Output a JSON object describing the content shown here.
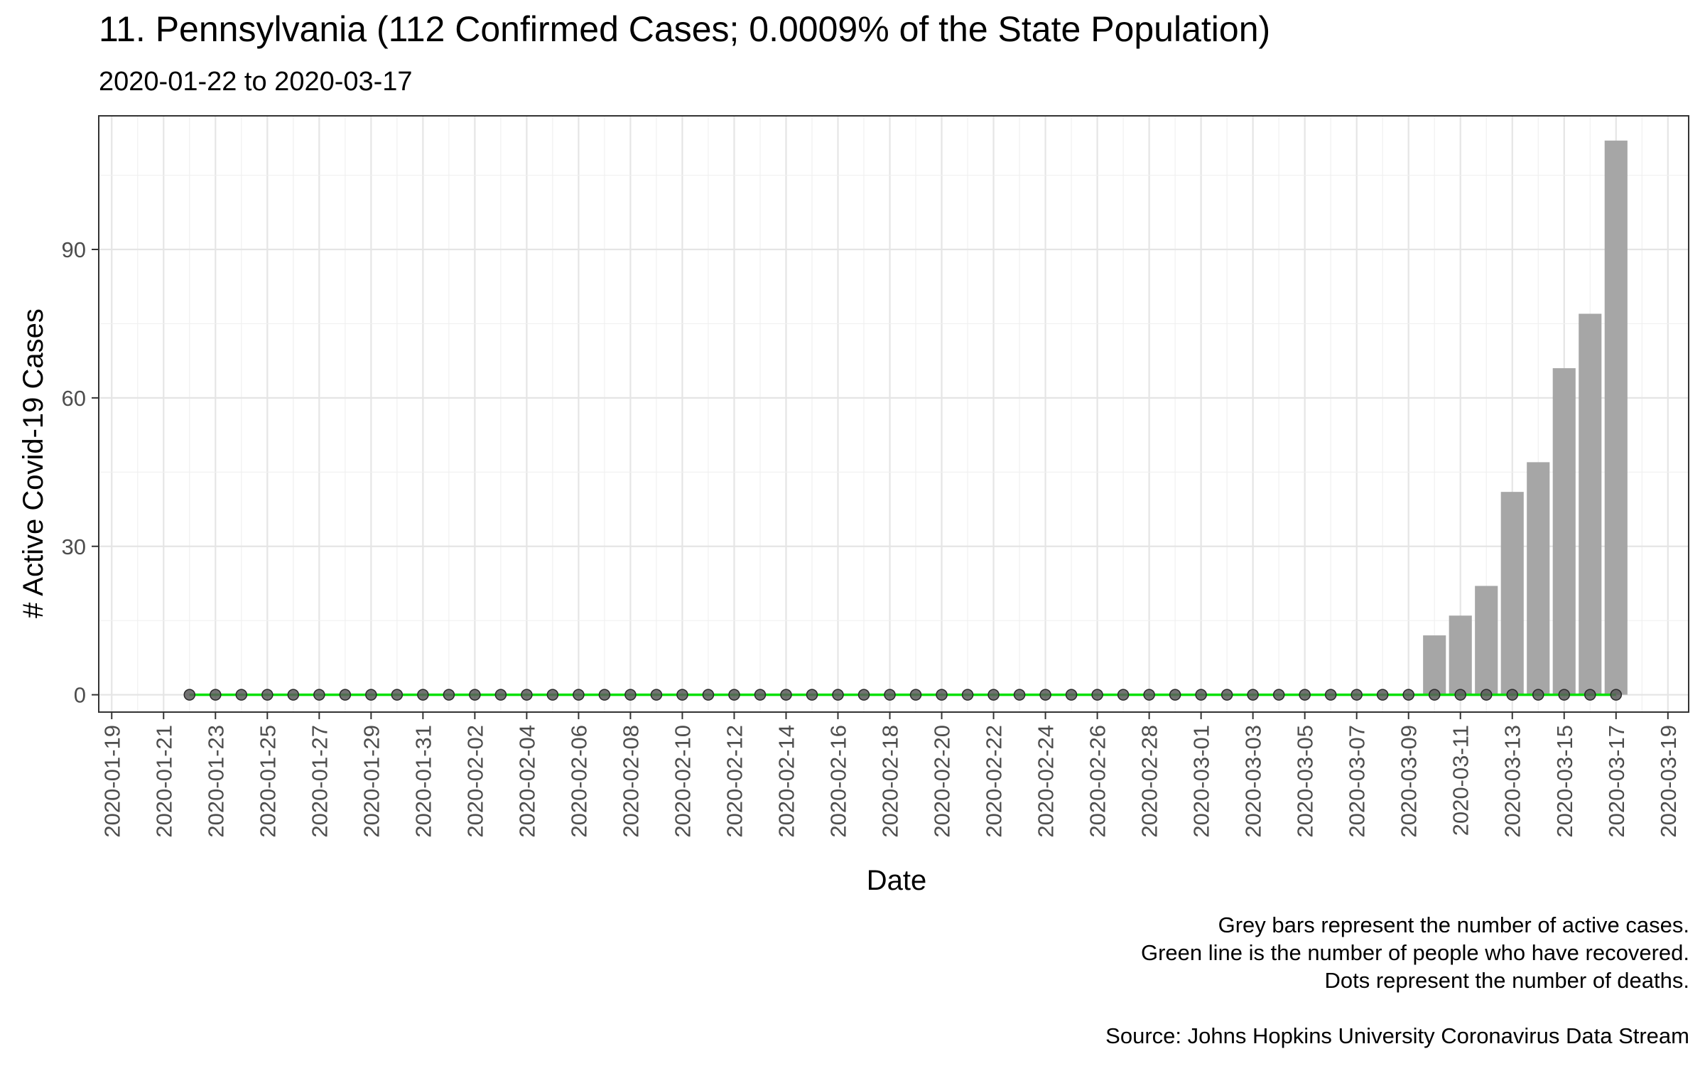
{
  "chart_data": {
    "type": "bar",
    "title": "11. Pennsylvania (112 Confirmed Cases; 0.0009% of the State Population)",
    "subtitle": "2020-01-22 to 2020-03-17",
    "xlabel": "Date",
    "ylabel": "# Active Covid-19 Cases",
    "caption": [
      "Grey bars represent the number of active cases.",
      "Green line is the number of people who have recovered.",
      "Dots represent the number of deaths.",
      "",
      "Source: Johns Hopkins University Coronavirus Data Stream"
    ],
    "xlim": [
      "2020-01-19",
      "2020-03-19"
    ],
    "ylim": [
      0,
      115
    ],
    "x_ticks": [
      "2020-01-19",
      "2020-01-21",
      "2020-01-23",
      "2020-01-25",
      "2020-01-27",
      "2020-01-29",
      "2020-01-31",
      "2020-02-02",
      "2020-02-04",
      "2020-02-06",
      "2020-02-08",
      "2020-02-10",
      "2020-02-12",
      "2020-02-14",
      "2020-02-16",
      "2020-02-18",
      "2020-02-20",
      "2020-02-22",
      "2020-02-24",
      "2020-02-26",
      "2020-02-28",
      "2020-03-01",
      "2020-03-03",
      "2020-03-05",
      "2020-03-07",
      "2020-03-09",
      "2020-03-11",
      "2020-03-13",
      "2020-03-15",
      "2020-03-17",
      "2020-03-19"
    ],
    "y_ticks": [
      0,
      30,
      60,
      90
    ],
    "grid": true,
    "x": [
      "2020-01-22",
      "2020-01-23",
      "2020-01-24",
      "2020-01-25",
      "2020-01-26",
      "2020-01-27",
      "2020-01-28",
      "2020-01-29",
      "2020-01-30",
      "2020-01-31",
      "2020-02-01",
      "2020-02-02",
      "2020-02-03",
      "2020-02-04",
      "2020-02-05",
      "2020-02-06",
      "2020-02-07",
      "2020-02-08",
      "2020-02-09",
      "2020-02-10",
      "2020-02-11",
      "2020-02-12",
      "2020-02-13",
      "2020-02-14",
      "2020-02-15",
      "2020-02-16",
      "2020-02-17",
      "2020-02-18",
      "2020-02-19",
      "2020-02-20",
      "2020-02-21",
      "2020-02-22",
      "2020-02-23",
      "2020-02-24",
      "2020-02-25",
      "2020-02-26",
      "2020-02-27",
      "2020-02-28",
      "2020-02-29",
      "2020-03-01",
      "2020-03-02",
      "2020-03-03",
      "2020-03-04",
      "2020-03-05",
      "2020-03-06",
      "2020-03-07",
      "2020-03-08",
      "2020-03-09",
      "2020-03-10",
      "2020-03-11",
      "2020-03-12",
      "2020-03-13",
      "2020-03-14",
      "2020-03-15",
      "2020-03-16",
      "2020-03-17"
    ],
    "series": [
      {
        "kind": "bar",
        "color": "#a6a6a6",
        "values": [
          0,
          0,
          0,
          0,
          0,
          0,
          0,
          0,
          0,
          0,
          0,
          0,
          0,
          0,
          0,
          0,
          0,
          0,
          0,
          0,
          0,
          0,
          0,
          0,
          0,
          0,
          0,
          0,
          0,
          0,
          0,
          0,
          0,
          0,
          0,
          0,
          0,
          0,
          0,
          0,
          0,
          0,
          0,
          0,
          0,
          0,
          0,
          0,
          12,
          16,
          22,
          41,
          47,
          66,
          77,
          112
        ]
      },
      {
        "kind": "line",
        "color": "#00e000",
        "values": [
          0,
          0,
          0,
          0,
          0,
          0,
          0,
          0,
          0,
          0,
          0,
          0,
          0,
          0,
          0,
          0,
          0,
          0,
          0,
          0,
          0,
          0,
          0,
          0,
          0,
          0,
          0,
          0,
          0,
          0,
          0,
          0,
          0,
          0,
          0,
          0,
          0,
          0,
          0,
          0,
          0,
          0,
          0,
          0,
          0,
          0,
          0,
          0,
          0,
          0,
          0,
          0,
          0,
          0,
          0,
          0
        ]
      },
      {
        "kind": "points",
        "color": "#5a5a5a",
        "values": [
          0,
          0,
          0,
          0,
          0,
          0,
          0,
          0,
          0,
          0,
          0,
          0,
          0,
          0,
          0,
          0,
          0,
          0,
          0,
          0,
          0,
          0,
          0,
          0,
          0,
          0,
          0,
          0,
          0,
          0,
          0,
          0,
          0,
          0,
          0,
          0,
          0,
          0,
          0,
          0,
          0,
          0,
          0,
          0,
          0,
          0,
          0,
          0,
          0,
          0,
          0,
          0,
          0,
          0,
          0,
          0
        ]
      }
    ]
  }
}
